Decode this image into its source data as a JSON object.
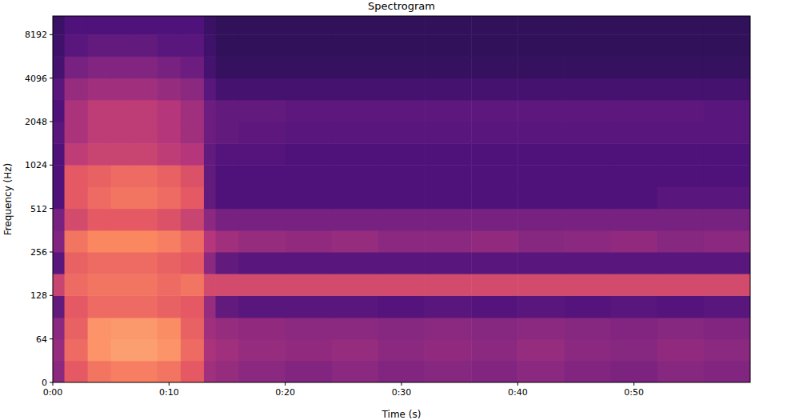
{
  "chart_data": {
    "type": "heatmap",
    "title": "Spectrogram",
    "x_label": "Time (s)",
    "y_label": "Frequency (Hz)",
    "xlim": [
      0,
      60
    ],
    "ylim": [
      0,
      11025
    ],
    "log": "y",
    "grid": false,
    "color": "magma",
    "zlim": [
      -80,
      0
    ],
    "xticks": [
      {
        "value": 0,
        "label": "0:00"
      },
      {
        "value": 10,
        "label": "0:10"
      },
      {
        "value": 20,
        "label": "0:20"
      },
      {
        "value": 30,
        "label": "0:30"
      },
      {
        "value": 40,
        "label": "0:40"
      },
      {
        "value": 50,
        "label": "0:50"
      }
    ],
    "yticks": [
      0,
      64,
      128,
      256,
      512,
      1024,
      2048,
      4096,
      8192
    ],
    "x_edges": [
      0,
      1,
      3,
      5,
      7,
      9,
      11,
      13,
      14,
      16,
      20,
      24,
      28,
      32,
      36,
      40,
      44,
      48,
      52,
      56,
      60
    ],
    "y_edges": [
      0,
      32,
      64,
      90,
      128,
      181,
      256,
      362,
      512,
      724,
      1024,
      1448,
      2048,
      2896,
      4096,
      5793,
      8192,
      11025
    ],
    "cells": [
      [
        -48,
        -30,
        -24,
        -22,
        -22,
        -24,
        -30,
        -44,
        -46,
        -48,
        -50,
        -48,
        -50,
        -49,
        -50,
        -48,
        -50,
        -51,
        -49,
        -50
      ],
      [
        -46,
        -26,
        -18,
        -16,
        -16,
        -18,
        -26,
        -42,
        -44,
        -46,
        -47,
        -46,
        -48,
        -47,
        -48,
        -46,
        -48,
        -49,
        -47,
        -48
      ],
      [
        -48,
        -28,
        -18,
        -17,
        -17,
        -19,
        -28,
        -44,
        -46,
        -47,
        -48,
        -48,
        -49,
        -48,
        -49,
        -48,
        -49,
        -50,
        -49,
        -50
      ],
      [
        -56,
        -30,
        -26,
        -26,
        -26,
        -28,
        -30,
        -46,
        -56,
        -58,
        -58,
        -58,
        -59,
        -58,
        -59,
        -58,
        -59,
        -58,
        -59,
        -58
      ],
      [
        -36,
        -26,
        -24,
        -24,
        -24,
        -26,
        -24,
        -34,
        -34,
        -34,
        -34,
        -34,
        -34,
        -34,
        -34,
        -34,
        -34,
        -34,
        -34,
        -34
      ],
      [
        -58,
        -28,
        -26,
        -26,
        -26,
        -28,
        -30,
        -48,
        -56,
        -58,
        -58,
        -58,
        -58,
        -58,
        -58,
        -58,
        -58,
        -58,
        -58,
        -58
      ],
      [
        -50,
        -24,
        -20,
        -20,
        -20,
        -22,
        -26,
        -40,
        -44,
        -46,
        -47,
        -46,
        -48,
        -48,
        -47,
        -49,
        -48,
        -47,
        -49,
        -48
      ],
      [
        -52,
        -34,
        -30,
        -30,
        -30,
        -32,
        -36,
        -48,
        -52,
        -52,
        -52,
        -52,
        -52,
        -52,
        -52,
        -52,
        -52,
        -52,
        -52,
        -52
      ],
      [
        -60,
        -30,
        -26,
        -24,
        -24,
        -26,
        -30,
        -56,
        -60,
        -60,
        -60,
        -60,
        -60,
        -60,
        -60,
        -60,
        -60,
        -60,
        -58,
        -58
      ],
      [
        -60,
        -30,
        -28,
        -26,
        -26,
        -28,
        -32,
        -56,
        -60,
        -60,
        -60,
        -60,
        -60,
        -60,
        -60,
        -60,
        -60,
        -60,
        -60,
        -60
      ],
      [
        -60,
        -38,
        -36,
        -36,
        -36,
        -38,
        -40,
        -56,
        -59,
        -59,
        -60,
        -60,
        -60,
        -60,
        -60,
        -60,
        -60,
        -60,
        -60,
        -60
      ],
      [
        -58,
        -42,
        -38,
        -38,
        -38,
        -40,
        -44,
        -54,
        -56,
        -57,
        -58,
        -58,
        -58,
        -58,
        -58,
        -58,
        -58,
        -58,
        -58,
        -58
      ],
      [
        -60,
        -42,
        -38,
        -38,
        -38,
        -40,
        -44,
        -54,
        -56,
        -56,
        -57,
        -57,
        -57,
        -57,
        -57,
        -57,
        -57,
        -57,
        -57,
        -58
      ],
      [
        -58,
        -46,
        -44,
        -44,
        -44,
        -46,
        -48,
        -58,
        -62,
        -62,
        -62,
        -62,
        -62,
        -62,
        -62,
        -62,
        -62,
        -62,
        -62,
        -62
      ],
      [
        -62,
        -52,
        -50,
        -50,
        -50,
        -52,
        -54,
        -62,
        -65,
        -65,
        -65,
        -65,
        -65,
        -65,
        -65,
        -65,
        -65,
        -65,
        -65,
        -65
      ],
      [
        -63,
        -58,
        -56,
        -56,
        -56,
        -58,
        -58,
        -63,
        -66,
        -66,
        -66,
        -66,
        -66,
        -66,
        -66,
        -66,
        -66,
        -66,
        -66,
        -66
      ],
      [
        -64,
        -60,
        -60,
        -60,
        -60,
        -60,
        -60,
        -64,
        -66,
        -66,
        -66,
        -66,
        -66,
        -66,
        -66,
        -66,
        -66,
        -66,
        -66,
        -66
      ]
    ]
  }
}
